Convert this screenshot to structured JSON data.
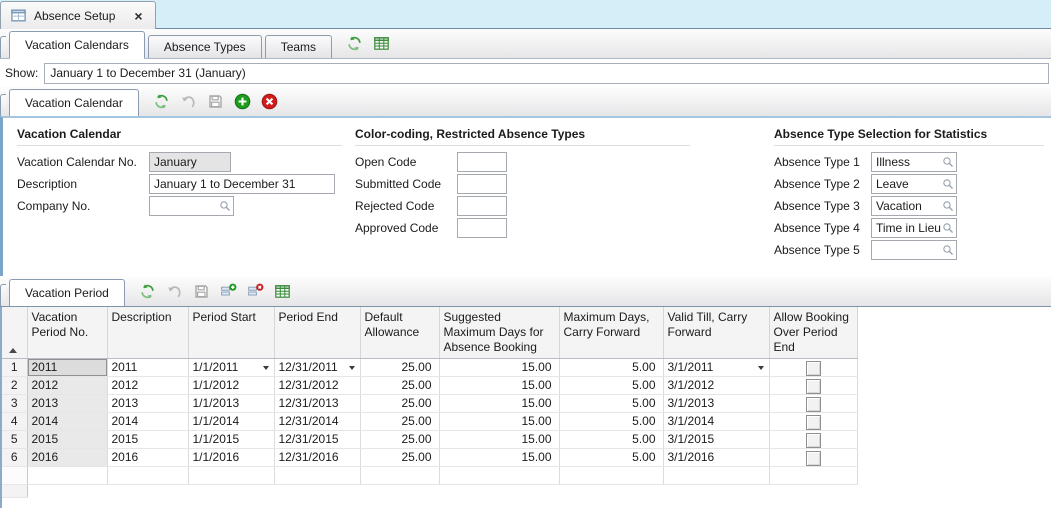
{
  "doc_tab": {
    "icon": "form-icon",
    "title": "Absence Setup",
    "close": "×"
  },
  "main_tabs": [
    {
      "label": "Vacation Calendars",
      "active": true
    },
    {
      "label": "Absence Types",
      "active": false
    },
    {
      "label": "Teams",
      "active": false
    }
  ],
  "main_toolbar": [
    {
      "name": "refresh-icon",
      "enabled": true
    },
    {
      "name": "grid-view-icon",
      "enabled": true
    }
  ],
  "show": {
    "label": "Show:",
    "value": "January 1 to December 31 (January)"
  },
  "calendar_panel": {
    "tab": "Vacation Calendar",
    "toolbar": [
      {
        "name": "refresh-icon",
        "enabled": true
      },
      {
        "name": "undo-icon",
        "enabled": false
      },
      {
        "name": "save-icon",
        "enabled": false
      },
      {
        "name": "add-record-icon",
        "enabled": true
      },
      {
        "name": "cancel-icon",
        "enabled": true
      }
    ],
    "sections": {
      "vacation_calendar": {
        "heading": "Vacation Calendar",
        "fields": [
          {
            "label": "Vacation Calendar No.",
            "value": "January",
            "disabled": true
          },
          {
            "label": "Description",
            "value": "January 1 to December 31"
          },
          {
            "label": "Company No.",
            "value": "",
            "lookup": true
          }
        ]
      },
      "color_coding": {
        "heading": "Color-coding, Restricted Absence Types",
        "fields": [
          {
            "label": "Open Code",
            "value": ""
          },
          {
            "label": "Submitted Code",
            "value": ""
          },
          {
            "label": "Rejected Code",
            "value": ""
          },
          {
            "label": "Approved Code",
            "value": ""
          }
        ]
      },
      "absence_stats": {
        "heading": "Absence Type Selection for Statistics",
        "fields": [
          {
            "label": "Absence Type 1",
            "value": "Illness",
            "lookup": true
          },
          {
            "label": "Absence Type 2",
            "value": "Leave",
            "lookup": true
          },
          {
            "label": "Absence Type 3",
            "value": "Vacation",
            "lookup": true
          },
          {
            "label": "Absence Type 4",
            "value": "Time in Lieu",
            "lookup": true
          },
          {
            "label": "Absence Type 5",
            "value": "",
            "lookup": true
          }
        ]
      }
    }
  },
  "period_panel": {
    "tab": "Vacation Period",
    "toolbar": [
      {
        "name": "refresh-icon",
        "enabled": true
      },
      {
        "name": "undo-icon",
        "enabled": false
      },
      {
        "name": "save-icon",
        "enabled": false
      },
      {
        "name": "add-row-icon",
        "enabled": true
      },
      {
        "name": "delete-row-icon",
        "enabled": true
      },
      {
        "name": "grid-view-icon",
        "enabled": true
      }
    ],
    "table": {
      "columns": [
        "Vacation Period No.",
        "Description",
        "Period Start",
        "Period End",
        "Default Allowance",
        "Suggested Maximum Days for Absence Booking",
        "Maximum Days, Carry Forward",
        "Valid Till, Carry Forward",
        "Allow Booking Over Period End"
      ],
      "rows": [
        {
          "num": "1",
          "vacation_period_no": "2011",
          "description": "2011",
          "period_start": "1/1/2011",
          "period_end": "12/31/2011",
          "default_allowance": "25.00",
          "suggested_max_days": "15.00",
          "max_days_carry_forward": "5.00",
          "valid_till": "3/1/2011",
          "allow_booking": false,
          "selected": true
        },
        {
          "num": "2",
          "vacation_period_no": "2012",
          "description": "2012",
          "period_start": "1/1/2012",
          "period_end": "12/31/2012",
          "default_allowance": "25.00",
          "suggested_max_days": "15.00",
          "max_days_carry_forward": "5.00",
          "valid_till": "3/1/2012",
          "allow_booking": false
        },
        {
          "num": "3",
          "vacation_period_no": "2013",
          "description": "2013",
          "period_start": "1/1/2013",
          "period_end": "12/31/2013",
          "default_allowance": "25.00",
          "suggested_max_days": "15.00",
          "max_days_carry_forward": "5.00",
          "valid_till": "3/1/2013",
          "allow_booking": false
        },
        {
          "num": "4",
          "vacation_period_no": "2014",
          "description": "2014",
          "period_start": "1/1/2014",
          "period_end": "12/31/2014",
          "default_allowance": "25.00",
          "suggested_max_days": "15.00",
          "max_days_carry_forward": "5.00",
          "valid_till": "3/1/2014",
          "allow_booking": false
        },
        {
          "num": "5",
          "vacation_period_no": "2015",
          "description": "2015",
          "period_start": "1/1/2015",
          "period_end": "12/31/2015",
          "default_allowance": "25.00",
          "suggested_max_days": "15.00",
          "max_days_carry_forward": "5.00",
          "valid_till": "3/1/2015",
          "allow_booking": false
        },
        {
          "num": "6",
          "vacation_period_no": "2016",
          "description": "2016",
          "period_start": "1/1/2016",
          "period_end": "12/31/2016",
          "default_allowance": "25.00",
          "suggested_max_days": "15.00",
          "max_days_carry_forward": "5.00",
          "valid_till": "3/1/2016",
          "allow_booking": false
        }
      ]
    }
  },
  "colors": {
    "header_strip_blue": "#d5eef8",
    "panel_border_blue": "#7ba6c9",
    "accent_green": "#1e9c1e",
    "accent_red": "#c81e1e",
    "disabled_field_gray": "#e4e4e5"
  }
}
